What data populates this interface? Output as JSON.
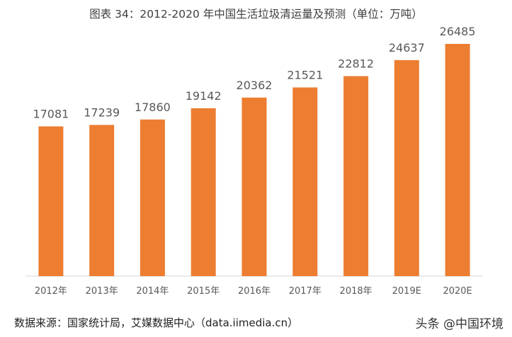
{
  "chart_data": {
    "type": "bar",
    "title": "图表 34：2012-2020 年中国生活垃圾清运量及预测（单位：万吨）",
    "categories": [
      "2012年",
      "2013年",
      "2014年",
      "2015年",
      "2016年",
      "2017年",
      "2018年",
      "2019E",
      "2020E"
    ],
    "values": [
      17081,
      17239,
      17860,
      19142,
      20362,
      21521,
      22812,
      24637,
      26485
    ],
    "value_labels": [
      "17081",
      "17239",
      "17860",
      "19142",
      "20362",
      "21521",
      "22812",
      "24637",
      "26485"
    ],
    "xlabel": "",
    "ylabel": "",
    "ylim": [
      0,
      28000
    ],
    "grid": false,
    "legend": "none",
    "bar_color": "#ED7D31",
    "axis_color": "#D9D9D9",
    "label_color": "#595959"
  },
  "footer": {
    "source": "数据来源：国家统计局，艾媒数据中心（data.iimedia.cn）",
    "watermark": "头条 @中国环境"
  }
}
